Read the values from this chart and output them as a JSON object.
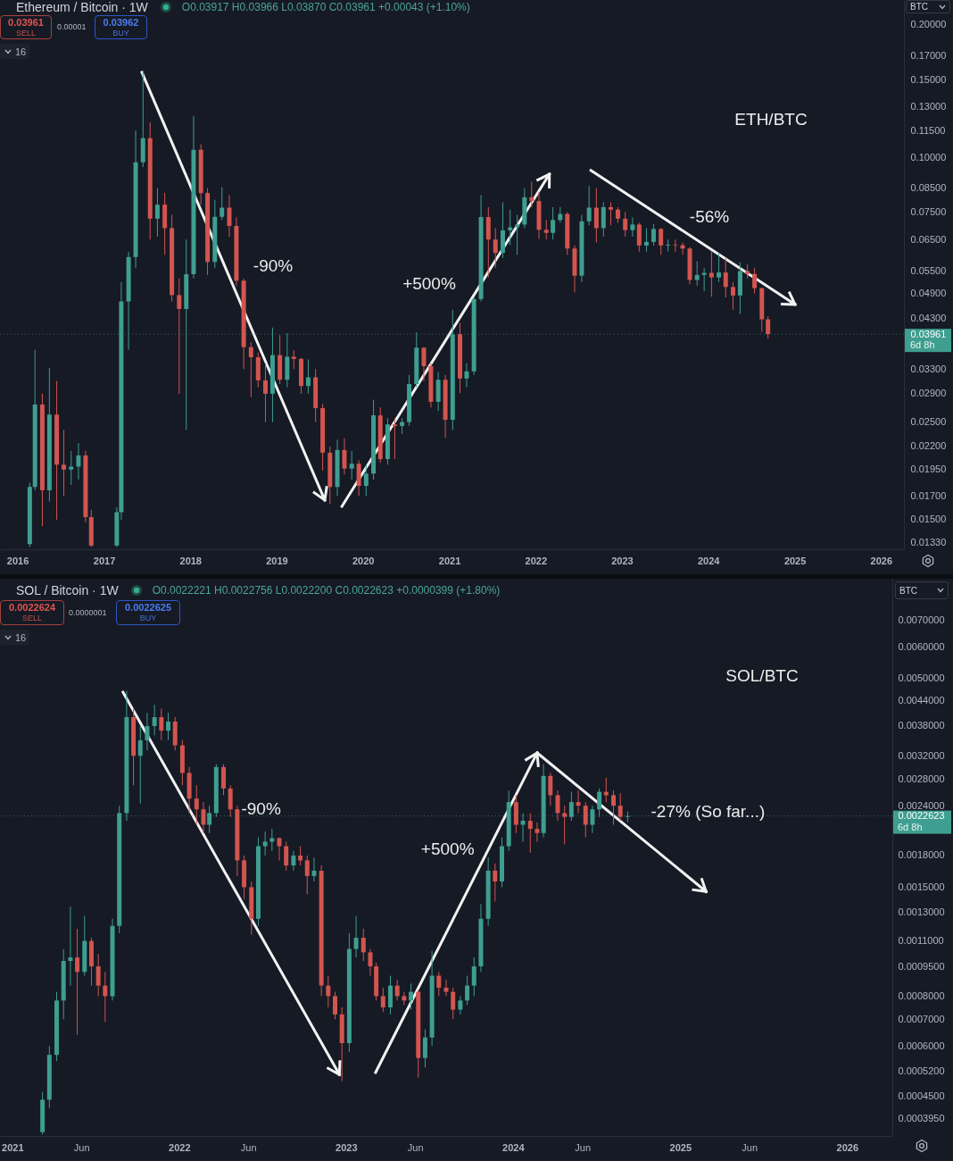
{
  "chart_data": [
    {
      "type": "candlestick",
      "title": "Ethereum / Bitcoin · 1W",
      "subtitle": "O0.03917 H0.03966 L0.03870 C0.03961 +0.00043 (+1.10%)",
      "x": [
        "2016-02-22",
        "2016-03-15",
        "2016-04-15",
        "2016-05-15",
        "2016-06-15",
        "2016-07-15",
        "2016-08-15",
        "2016-09-15",
        "2016-10-15",
        "2016-11-08",
        "2017-02-24",
        "2017-03-15",
        "2017-04-15",
        "2017-05-15",
        "2017-06-15",
        "2017-07-15",
        "2017-08-15",
        "2017-09-15",
        "2017-10-15",
        "2017-11-15",
        "2017-12-15",
        "2018-01-15",
        "2018-02-15",
        "2018-03-15",
        "2018-04-15",
        "2018-05-15",
        "2018-06-15",
        "2018-07-15",
        "2018-08-15",
        "2018-09-15",
        "2018-10-15",
        "2018-11-15",
        "2018-12-15",
        "2019-01-15",
        "2019-02-15",
        "2019-03-15",
        "2019-04-15",
        "2019-05-15",
        "2019-06-15",
        "2019-07-15",
        "2019-08-15",
        "2019-09-15",
        "2019-10-15",
        "2019-11-15",
        "2019-12-15",
        "2020-01-15",
        "2020-02-15",
        "2020-03-15",
        "2020-04-15",
        "2020-05-15",
        "2020-06-15",
        "2020-07-15",
        "2020-08-15",
        "2020-09-15",
        "2020-10-15",
        "2020-11-15",
        "2020-12-15",
        "2021-01-15",
        "2021-02-15",
        "2021-03-15",
        "2021-04-15",
        "2021-05-15",
        "2021-06-15",
        "2021-07-15",
        "2021-08-15",
        "2021-09-15",
        "2021-10-15",
        "2021-11-15",
        "2021-12-15",
        "2022-01-15",
        "2022-02-15",
        "2022-03-15",
        "2022-04-15",
        "2022-05-15",
        "2022-06-15",
        "2022-07-15",
        "2022-08-15",
        "2022-09-15",
        "2022-10-15",
        "2022-11-15",
        "2022-12-15",
        "2023-01-15",
        "2023-02-15",
        "2023-03-15",
        "2023-04-15",
        "2023-05-15",
        "2023-06-15",
        "2023-07-15",
        "2023-08-15",
        "2023-09-15",
        "2023-10-15",
        "2023-11-15",
        "2023-12-15",
        "2024-01-15",
        "2024-02-15",
        "2024-03-15",
        "2024-04-15",
        "2024-05-15",
        "2024-06-15",
        "2024-07-15",
        "2024-08-15",
        "2024-09-10"
      ],
      "ohlc": [
        [
          0.0132,
          0.0182,
          0.013,
          0.0178
        ],
        [
          0.0178,
          0.0365,
          0.0175,
          0.0274
        ],
        [
          0.0274,
          0.029,
          0.0145,
          0.0175
        ],
        [
          0.0175,
          0.0332,
          0.0165,
          0.026
        ],
        [
          0.026,
          0.031,
          0.015,
          0.02
        ],
        [
          0.02,
          0.024,
          0.017,
          0.0195
        ],
        [
          0.0195,
          0.0215,
          0.018,
          0.0198
        ],
        [
          0.0198,
          0.0224,
          0.0185,
          0.021
        ],
        [
          0.021,
          0.0215,
          0.0148,
          0.0152
        ],
        [
          0.0152,
          0.0158,
          0.013,
          0.0131
        ],
        [
          0.0131,
          0.016,
          0.013,
          0.0156
        ],
        [
          0.0156,
          0.052,
          0.015,
          0.047
        ],
        [
          0.047,
          0.061,
          0.0365,
          0.0593
        ],
        [
          0.0593,
          0.115,
          0.056,
          0.0974
        ],
        [
          0.0974,
          0.157,
          0.095,
          0.1105
        ],
        [
          0.1105,
          0.12,
          0.065,
          0.0725
        ],
        [
          0.0725,
          0.085,
          0.066,
          0.078
        ],
        [
          0.078,
          0.083,
          0.06,
          0.069
        ],
        [
          0.069,
          0.074,
          0.047,
          0.0486
        ],
        [
          0.0486,
          0.053,
          0.029,
          0.0452
        ],
        [
          0.0452,
          0.065,
          0.024,
          0.0542
        ],
        [
          0.0542,
          0.124,
          0.053,
          0.104
        ],
        [
          0.104,
          0.107,
          0.078,
          0.0829
        ],
        [
          0.0829,
          0.085,
          0.054,
          0.0578
        ],
        [
          0.0578,
          0.08,
          0.056,
          0.0732
        ],
        [
          0.0732,
          0.0855,
          0.072,
          0.0768
        ],
        [
          0.0768,
          0.082,
          0.066,
          0.0698
        ],
        [
          0.0698,
          0.073,
          0.051,
          0.0524
        ],
        [
          0.0524,
          0.053,
          0.033,
          0.037
        ],
        [
          0.037,
          0.038,
          0.0285,
          0.0351
        ],
        [
          0.0351,
          0.036,
          0.03,
          0.0311
        ],
        [
          0.0311,
          0.034,
          0.025,
          0.029
        ],
        [
          0.029,
          0.041,
          0.025,
          0.0355
        ],
        [
          0.0355,
          0.0394,
          0.0305,
          0.0312
        ],
        [
          0.0312,
          0.0398,
          0.03,
          0.0352
        ],
        [
          0.0352,
          0.0364,
          0.033,
          0.0348
        ],
        [
          0.0348,
          0.035,
          0.029,
          0.0302
        ],
        [
          0.0302,
          0.0347,
          0.029,
          0.0316
        ],
        [
          0.0316,
          0.033,
          0.025,
          0.0269
        ],
        [
          0.0269,
          0.0275,
          0.0194,
          0.0213
        ],
        [
          0.0213,
          0.022,
          0.0163,
          0.0178
        ],
        [
          0.0178,
          0.0228,
          0.017,
          0.0216
        ],
        [
          0.0216,
          0.023,
          0.019,
          0.0196
        ],
        [
          0.0196,
          0.0215,
          0.0185,
          0.0201
        ],
        [
          0.0201,
          0.0205,
          0.017,
          0.0179
        ],
        [
          0.0179,
          0.02,
          0.017,
          0.0191
        ],
        [
          0.0191,
          0.0281,
          0.0185,
          0.0259
        ],
        [
          0.0259,
          0.027,
          0.0202,
          0.0206
        ],
        [
          0.0206,
          0.0255,
          0.02,
          0.0247
        ],
        [
          0.0247,
          0.0255,
          0.0206,
          0.0245
        ],
        [
          0.0245,
          0.0255,
          0.0235,
          0.025
        ],
        [
          0.025,
          0.032,
          0.0245,
          0.0305
        ],
        [
          0.0305,
          0.04,
          0.03,
          0.0369
        ],
        [
          0.0369,
          0.037,
          0.031,
          0.0335
        ],
        [
          0.0335,
          0.034,
          0.027,
          0.0278
        ],
        [
          0.0278,
          0.0325,
          0.0265,
          0.0312
        ],
        [
          0.0312,
          0.032,
          0.023,
          0.0253
        ],
        [
          0.0253,
          0.045,
          0.024,
          0.0396
        ],
        [
          0.0396,
          0.042,
          0.0291,
          0.0314
        ],
        [
          0.0314,
          0.034,
          0.03,
          0.0326
        ],
        [
          0.0326,
          0.048,
          0.032,
          0.0476
        ],
        [
          0.0476,
          0.082,
          0.047,
          0.0731
        ],
        [
          0.0731,
          0.077,
          0.0534,
          0.065
        ],
        [
          0.065,
          0.069,
          0.056,
          0.0606
        ],
        [
          0.0606,
          0.079,
          0.059,
          0.0682
        ],
        [
          0.0682,
          0.076,
          0.0631,
          0.0693
        ],
        [
          0.0693,
          0.074,
          0.06,
          0.0703
        ],
        [
          0.0703,
          0.085,
          0.069,
          0.0811
        ],
        [
          0.0811,
          0.088,
          0.077,
          0.0795
        ],
        [
          0.0795,
          0.0834,
          0.0652,
          0.0684
        ],
        [
          0.0684,
          0.072,
          0.065,
          0.0673
        ],
        [
          0.0673,
          0.077,
          0.065,
          0.072
        ],
        [
          0.072,
          0.077,
          0.071,
          0.0743
        ],
        [
          0.0743,
          0.075,
          0.06,
          0.062
        ],
        [
          0.062,
          0.063,
          0.0493,
          0.0538
        ],
        [
          0.0538,
          0.074,
          0.052,
          0.0715
        ],
        [
          0.0715,
          0.086,
          0.07,
          0.0768
        ],
        [
          0.0768,
          0.085,
          0.064,
          0.069
        ],
        [
          0.069,
          0.079,
          0.066,
          0.077
        ],
        [
          0.077,
          0.079,
          0.07,
          0.076
        ],
        [
          0.076,
          0.077,
          0.071,
          0.0725
        ],
        [
          0.0725,
          0.075,
          0.066,
          0.0683
        ],
        [
          0.0683,
          0.073,
          0.066,
          0.0703
        ],
        [
          0.0703,
          0.071,
          0.061,
          0.063
        ],
        [
          0.063,
          0.069,
          0.061,
          0.0642
        ],
        [
          0.0642,
          0.0704,
          0.063,
          0.0687
        ],
        [
          0.0687,
          0.069,
          0.06,
          0.063
        ],
        [
          0.063,
          0.065,
          0.061,
          0.0633
        ],
        [
          0.0633,
          0.065,
          0.061,
          0.0631
        ],
        [
          0.0631,
          0.064,
          0.06,
          0.062
        ],
        [
          0.062,
          0.0625,
          0.0514,
          0.0526
        ],
        [
          0.0526,
          0.058,
          0.051,
          0.054
        ],
        [
          0.054,
          0.056,
          0.0496,
          0.0546
        ],
        [
          0.0546,
          0.0611,
          0.0482,
          0.0533
        ],
        [
          0.0533,
          0.0605,
          0.052,
          0.0547
        ],
        [
          0.0547,
          0.059,
          0.048,
          0.0507
        ],
        [
          0.0507,
          0.052,
          0.045,
          0.0485
        ],
        [
          0.0485,
          0.0577,
          0.044,
          0.0551
        ],
        [
          0.0551,
          0.057,
          0.053,
          0.0543
        ],
        [
          0.0543,
          0.056,
          0.049,
          0.0504
        ],
        [
          0.0504,
          0.0505,
          0.0401,
          0.0428
        ],
        [
          0.0428,
          0.0435,
          0.0387,
          0.03961
        ]
      ],
      "colors": [
        "#3e9e8f",
        "#3e9e8f",
        "#d2554f",
        "#3e9e8f",
        "#d2554f",
        "#d2554f",
        "#3e9e8f",
        "#3e9e8f",
        "#d2554f",
        "#d2554f",
        "#3e9e8f",
        "#3e9e8f",
        "#3e9e8f",
        "#3e9e8f",
        "#3e9e8f",
        "#d2554f",
        "#3e9e8f",
        "#d2554f",
        "#d2554f",
        "#d2554f",
        "#3e9e8f",
        "#3e9e8f",
        "#d2554f",
        "#d2554f",
        "#3e9e8f",
        "#3e9e8f",
        "#d2554f",
        "#d2554f",
        "#d2554f",
        "#d2554f",
        "#d2554f",
        "#d2554f",
        "#3e9e8f",
        "#d2554f",
        "#3e9e8f",
        "#d2554f",
        "#d2554f",
        "#3e9e8f",
        "#d2554f",
        "#d2554f",
        "#d2554f",
        "#3e9e8f",
        "#d2554f",
        "#3e9e8f",
        "#d2554f",
        "#3e9e8f",
        "#3e9e8f",
        "#d2554f",
        "#3e9e8f",
        "#d2554f",
        "#3e9e8f",
        "#3e9e8f",
        "#3e9e8f",
        "#d2554f",
        "#d2554f",
        "#3e9e8f",
        "#d2554f",
        "#3e9e8f",
        "#d2554f",
        "#3e9e8f",
        "#3e9e8f",
        "#3e9e8f",
        "#d2554f",
        "#d2554f",
        "#3e9e8f",
        "#3e9e8f",
        "#3e9e8f",
        "#3e9e8f",
        "#d2554f",
        "#d2554f",
        "#d2554f",
        "#3e9e8f",
        "#3e9e8f",
        "#d2554f",
        "#d2554f",
        "#3e9e8f",
        "#3e9e8f",
        "#d2554f",
        "#3e9e8f",
        "#d2554f",
        "#d2554f",
        "#d2554f",
        "#3e9e8f",
        "#d2554f",
        "#3e9e8f",
        "#3e9e8f",
        "#d2554f",
        "#3e9e8f",
        "#d2554f",
        "#d2554f",
        "#d2554f",
        "#3e9e8f",
        "#3e9e8f",
        "#d2554f",
        "#3e9e8f",
        "#d2554f",
        "#d2554f",
        "#3e9e8f",
        "#d2554f",
        "#d2554f",
        "#d2554f",
        "#d2554f"
      ],
      "xlim": [
        "2015-10-19",
        "2026-04-08"
      ],
      "xticks": [
        "2016",
        "2017",
        "2018",
        "2019",
        "2020",
        "2021",
        "2022",
        "2023",
        "2024",
        "2025",
        "2026"
      ],
      "ylim": [
        0.01285,
        0.2277
      ],
      "yticks": [
        {
          "value": 0.2,
          "label": "0.20000"
        },
        {
          "value": 0.17,
          "label": "0.17000"
        },
        {
          "value": 0.15,
          "label": "0.15000"
        },
        {
          "value": 0.13,
          "label": "0.13000"
        },
        {
          "value": 0.115,
          "label": "0.11500"
        },
        {
          "value": 0.1,
          "label": "0.10000"
        },
        {
          "value": 0.085,
          "label": "0.08500"
        },
        {
          "value": 0.075,
          "label": "0.07500"
        },
        {
          "value": 0.065,
          "label": "0.06500"
        },
        {
          "value": 0.055,
          "label": "0.05500"
        },
        {
          "value": 0.049,
          "label": "0.04900"
        },
        {
          "value": 0.043,
          "label": "0.04300"
        },
        0.03961,
        {
          "value": 0.033,
          "label": "0.03300"
        },
        {
          "value": 0.029,
          "label": "0.02900"
        },
        {
          "value": 0.025,
          "label": "0.02500"
        },
        {
          "value": 0.022,
          "label": "0.02200"
        },
        {
          "value": 0.0195,
          "label": "0.01950"
        },
        {
          "value": 0.017,
          "label": "0.01700"
        },
        {
          "value": 0.015,
          "label": "0.01500"
        },
        {
          "value": 0.0133,
          "label": "0.01330"
        }
      ],
      "log": true,
      "ref_lines": [
        {
          "axis": "y",
          "value": 0.03961,
          "label": "6d 8h",
          "color": "#3e9e8f",
          "line_style": "dotted"
        }
      ],
      "annotations": [
        "ETH/BTC",
        "-90%",
        "+500%",
        "-56%",
        "0.03961",
        "SELL",
        "0.00001",
        "0.03962",
        "BUY",
        "16",
        "BTC"
      ]
    },
    {
      "type": "candlestick",
      "title": "SOL / Bitcoin · 1W",
      "subtitle": "O0.0022221 H0.0022756 L0.0022200 C0.0022623 +0.0000399 (+1.80%)",
      "x": [
        "2021-03-08",
        "2021-03-23",
        "2021-04-08",
        "2021-04-23",
        "2021-05-08",
        "2021-05-23",
        "2021-06-08",
        "2021-06-23",
        "2021-07-08",
        "2021-07-23",
        "2021-08-08",
        "2021-08-23",
        "2021-09-08",
        "2021-09-23",
        "2021-10-08",
        "2021-10-23",
        "2021-11-08",
        "2021-11-23",
        "2021-12-08",
        "2021-12-23",
        "2022-01-08",
        "2022-01-23",
        "2022-02-08",
        "2022-02-23",
        "2022-03-08",
        "2022-03-23",
        "2022-04-08",
        "2022-04-23",
        "2022-05-08",
        "2022-05-23",
        "2022-06-08",
        "2022-06-23",
        "2022-07-08",
        "2022-07-23",
        "2022-08-08",
        "2022-08-23",
        "2022-09-08",
        "2022-09-23",
        "2022-10-08",
        "2022-10-23",
        "2022-11-08",
        "2022-11-23",
        "2022-12-08",
        "2022-12-23",
        "2023-01-08",
        "2023-01-23",
        "2023-02-08",
        "2023-02-23",
        "2023-03-08",
        "2023-03-23",
        "2023-04-08",
        "2023-04-23",
        "2023-05-08",
        "2023-05-23",
        "2023-06-08",
        "2023-06-23",
        "2023-07-08",
        "2023-07-23",
        "2023-08-08",
        "2023-08-23",
        "2023-09-08",
        "2023-09-23",
        "2023-10-08",
        "2023-10-23",
        "2023-11-08",
        "2023-11-23",
        "2023-12-08",
        "2023-12-23",
        "2024-01-08",
        "2024-01-23",
        "2024-02-08",
        "2024-02-23",
        "2024-03-08",
        "2024-03-23",
        "2024-04-08",
        "2024-04-23",
        "2024-05-08",
        "2024-05-23",
        "2024-06-08",
        "2024-06-23",
        "2024-07-08",
        "2024-07-23",
        "2024-08-08",
        "2024-08-23",
        "2024-09-08"
      ],
      "ohlc": [
        [
          0.000365,
          0.00046,
          0.00036,
          0.00044
        ],
        [
          0.00044,
          0.0006,
          0.00042,
          0.00057
        ],
        [
          0.00057,
          0.00082,
          0.00055,
          0.00078
        ],
        [
          0.00078,
          0.00105,
          0.0007,
          0.00098
        ],
        [
          0.00098,
          0.00134,
          0.00085,
          0.001
        ],
        [
          0.001,
          0.00118,
          0.00064,
          0.00092
        ],
        [
          0.00092,
          0.00127,
          0.0009,
          0.0011
        ],
        [
          0.0011,
          0.00112,
          0.00085,
          0.00095
        ],
        [
          0.00095,
          0.00102,
          0.0008,
          0.00085
        ],
        [
          0.00085,
          0.00092,
          0.00069,
          0.0008
        ],
        [
          0.0008,
          0.00125,
          0.00078,
          0.0012
        ],
        [
          0.0012,
          0.0024,
          0.00115,
          0.0023
        ],
        [
          0.0023,
          0.00465,
          0.0022,
          0.004
        ],
        [
          0.004,
          0.0042,
          0.0027,
          0.0032
        ],
        [
          0.0032,
          0.0038,
          0.00243,
          0.0035
        ],
        [
          0.0035,
          0.0041,
          0.0033,
          0.0038
        ],
        [
          0.0038,
          0.0043,
          0.0036,
          0.004
        ],
        [
          0.004,
          0.0042,
          0.0035,
          0.0037
        ],
        [
          0.0037,
          0.0041,
          0.0035,
          0.0039
        ],
        [
          0.0039,
          0.004,
          0.0033,
          0.0034
        ],
        [
          0.0034,
          0.0035,
          0.0027,
          0.0029
        ],
        [
          0.0029,
          0.003,
          0.0023,
          0.0025
        ],
        [
          0.0025,
          0.0027,
          0.00215,
          0.00235
        ],
        [
          0.00235,
          0.00245,
          0.00205,
          0.00215
        ],
        [
          0.00215,
          0.0024,
          0.00205,
          0.0023
        ],
        [
          0.0023,
          0.00305,
          0.00225,
          0.003
        ],
        [
          0.003,
          0.00305,
          0.00255,
          0.00265
        ],
        [
          0.00265,
          0.0027,
          0.00225,
          0.00235
        ],
        [
          0.00235,
          0.0024,
          0.0016,
          0.00175
        ],
        [
          0.00175,
          0.0018,
          0.0014,
          0.0015
        ],
        [
          0.0015,
          0.00155,
          0.00114,
          0.00125
        ],
        [
          0.00125,
          0.002,
          0.0012,
          0.0019
        ],
        [
          0.0019,
          0.00207,
          0.0018,
          0.00195
        ],
        [
          0.00195,
          0.0021,
          0.00185,
          0.00199
        ],
        [
          0.00199,
          0.002,
          0.00175,
          0.0019
        ],
        [
          0.0019,
          0.00195,
          0.00165,
          0.0017
        ],
        [
          0.0017,
          0.00185,
          0.00165,
          0.0018
        ],
        [
          0.0018,
          0.0019,
          0.0017,
          0.00175
        ],
        [
          0.00175,
          0.0018,
          0.00144,
          0.0016
        ],
        [
          0.0016,
          0.00178,
          0.00155,
          0.00165
        ],
        [
          0.00165,
          0.0017,
          0.0008,
          0.00085
        ],
        [
          0.00085,
          0.0009,
          0.00075,
          0.0008
        ],
        [
          0.0008,
          0.00082,
          0.0007,
          0.00072
        ],
        [
          0.00072,
          0.00075,
          0.00049,
          0.00061
        ],
        [
          0.00061,
          0.00115,
          0.00058,
          0.00105
        ],
        [
          0.00105,
          0.00127,
          0.001,
          0.00112
        ],
        [
          0.00112,
          0.00118,
          0.00098,
          0.00103
        ],
        [
          0.00103,
          0.00105,
          0.0009,
          0.00095
        ],
        [
          0.00095,
          0.00097,
          0.00078,
          0.0008
        ],
        [
          0.0008,
          0.00084,
          0.00073,
          0.00075
        ],
        [
          0.00075,
          0.0009,
          0.00072,
          0.00085
        ],
        [
          0.00085,
          0.00088,
          0.00078,
          0.0008
        ],
        [
          0.0008,
          0.00082,
          0.00076,
          0.00078
        ],
        [
          0.00078,
          0.00086,
          0.00074,
          0.00082
        ],
        [
          0.00082,
          0.00083,
          0.0005,
          0.00056
        ],
        [
          0.00056,
          0.00066,
          0.00053,
          0.00063
        ],
        [
          0.00063,
          0.00104,
          0.0006,
          0.0009
        ],
        [
          0.0009,
          0.00092,
          0.0008,
          0.00084
        ],
        [
          0.00084,
          0.00088,
          0.0008,
          0.00082
        ],
        [
          0.00082,
          0.00084,
          0.0007,
          0.00074
        ],
        [
          0.00074,
          0.0008,
          0.00072,
          0.00078
        ],
        [
          0.00078,
          0.0009,
          0.00076,
          0.00085
        ],
        [
          0.00085,
          0.001,
          0.0008,
          0.00095
        ],
        [
          0.00095,
          0.00136,
          0.00092,
          0.00125
        ],
        [
          0.00125,
          0.00178,
          0.0012,
          0.00165
        ],
        [
          0.00165,
          0.00172,
          0.00138,
          0.00155
        ],
        [
          0.00155,
          0.002,
          0.0015,
          0.0019
        ],
        [
          0.0019,
          0.00262,
          0.00185,
          0.00245
        ],
        [
          0.00245,
          0.00255,
          0.00205,
          0.00215
        ],
        [
          0.00215,
          0.0023,
          0.00195,
          0.0022
        ],
        [
          0.0022,
          0.0023,
          0.00183,
          0.0021
        ],
        [
          0.0021,
          0.00218,
          0.00195,
          0.00205
        ],
        [
          0.00205,
          0.00305,
          0.002,
          0.00285
        ],
        [
          0.00285,
          0.0029,
          0.0024,
          0.00255
        ],
        [
          0.00255,
          0.00262,
          0.0022,
          0.0023
        ],
        [
          0.0023,
          0.0024,
          0.00192,
          0.00225
        ],
        [
          0.00225,
          0.0026,
          0.0022,
          0.00245
        ],
        [
          0.00245,
          0.00262,
          0.0023,
          0.0024
        ],
        [
          0.0024,
          0.00245,
          0.002,
          0.00215
        ],
        [
          0.00215,
          0.0024,
          0.00205,
          0.00235
        ],
        [
          0.00235,
          0.00265,
          0.00225,
          0.0026
        ],
        [
          0.0026,
          0.00282,
          0.00245,
          0.00255
        ],
        [
          0.00255,
          0.00262,
          0.00215,
          0.0024
        ],
        [
          0.0024,
          0.00258,
          0.0022,
          0.00225
        ],
        [
          0.00225,
          0.00232,
          0.00218,
          0.0022623
        ]
      ],
      "colors": [
        "#3e9e8f",
        "#3e9e8f",
        "#3e9e8f",
        "#3e9e8f",
        "#3e9e8f",
        "#d2554f",
        "#3e9e8f",
        "#d2554f",
        "#d2554f",
        "#d2554f",
        "#3e9e8f",
        "#3e9e8f",
        "#3e9e8f",
        "#d2554f",
        "#3e9e8f",
        "#3e9e8f",
        "#3e9e8f",
        "#d2554f",
        "#3e9e8f",
        "#d2554f",
        "#d2554f",
        "#d2554f",
        "#d2554f",
        "#d2554f",
        "#3e9e8f",
        "#3e9e8f",
        "#d2554f",
        "#d2554f",
        "#d2554f",
        "#d2554f",
        "#d2554f",
        "#3e9e8f",
        "#3e9e8f",
        "#3e9e8f",
        "#d2554f",
        "#d2554f",
        "#3e9e8f",
        "#d2554f",
        "#d2554f",
        "#3e9e8f",
        "#d2554f",
        "#d2554f",
        "#d2554f",
        "#d2554f",
        "#3e9e8f",
        "#3e9e8f",
        "#d2554f",
        "#d2554f",
        "#d2554f",
        "#d2554f",
        "#3e9e8f",
        "#d2554f",
        "#d2554f",
        "#3e9e8f",
        "#d2554f",
        "#3e9e8f",
        "#3e9e8f",
        "#d2554f",
        "#d2554f",
        "#d2554f",
        "#3e9e8f",
        "#3e9e8f",
        "#3e9e8f",
        "#3e9e8f",
        "#3e9e8f",
        "#d2554f",
        "#3e9e8f",
        "#3e9e8f",
        "#d2554f",
        "#3e9e8f",
        "#d2554f",
        "#d2554f",
        "#3e9e8f",
        "#d2554f",
        "#d2554f",
        "#d2554f",
        "#3e9e8f",
        "#d2554f",
        "#d2554f",
        "#3e9e8f",
        "#3e9e8f",
        "#d2554f",
        "#d2554f",
        "#d2554f",
        "#3e9e8f"
      ],
      "xlim": [
        "2020-12-05",
        "2026-04-10"
      ],
      "xticks": [
        "2021",
        {
          "value": "2021-06",
          "label": "Jun"
        },
        "2022",
        {
          "value": "2022-06",
          "label": "Jun"
        },
        "2023",
        {
          "value": "2023-06",
          "label": "Jun"
        },
        "2024",
        {
          "value": "2024-06",
          "label": "Jun"
        },
        "2025",
        {
          "value": "2025-06",
          "label": "Jun"
        },
        "2026"
      ],
      "ylim": [
        0.000357,
        0.00889
      ],
      "yticks": [
        {
          "value": 0.007,
          "label": "0.0070000"
        },
        {
          "value": 0.006,
          "label": "0.0060000"
        },
        {
          "value": 0.005,
          "label": "0.0050000"
        },
        {
          "value": 0.0044,
          "label": "0.0044000"
        },
        {
          "value": 0.0038,
          "label": "0.0038000"
        },
        {
          "value": 0.0032,
          "label": "0.0032000"
        },
        {
          "value": 0.0028,
          "label": "0.0028000"
        },
        {
          "value": 0.0024,
          "label": "0.0024000"
        },
        0.0022623,
        {
          "value": 0.0018,
          "label": "0.0018000"
        },
        {
          "value": 0.0015,
          "label": "0.0015000"
        },
        {
          "value": 0.0013,
          "label": "0.0013000"
        },
        {
          "value": 0.0011,
          "label": "0.0011000"
        },
        {
          "value": 0.00095,
          "label": "0.0009500"
        },
        {
          "value": 0.0008,
          "label": "0.0008000"
        },
        {
          "value": 0.0007,
          "label": "0.0007000"
        },
        {
          "value": 0.0006,
          "label": "0.0006000"
        },
        {
          "value": 0.00052,
          "label": "0.0005200"
        },
        {
          "value": 0.00045,
          "label": "0.0004500"
        },
        {
          "value": 0.000395,
          "label": "0.0003950"
        }
      ],
      "log": true,
      "ref_lines": [
        {
          "axis": "y",
          "value": 0.0022623,
          "label": "6d 8h",
          "color": "#3e9e8f",
          "line_style": "dotted"
        }
      ],
      "annotations": [
        "SOL/BTC",
        "-90%",
        "+500%",
        "-27% (So far...)",
        "0.0022624",
        "SELL",
        "0.0000001",
        "0.0022625",
        "BUY",
        "16",
        "BTC"
      ]
    }
  ]
}
